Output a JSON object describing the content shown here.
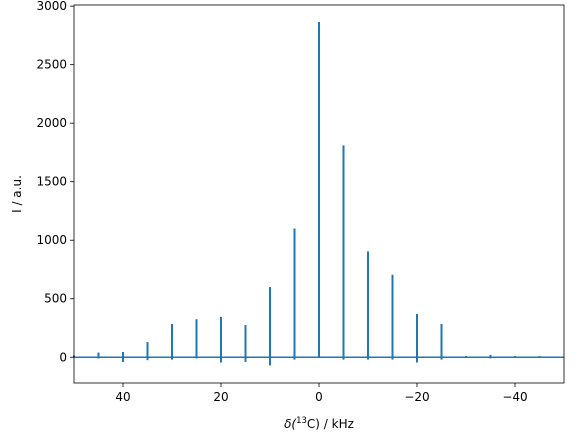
{
  "chart_data": {
    "type": "line",
    "title": "",
    "xlabel_parts": {
      "prefix": "δ(",
      "sup": "13",
      "suffix": "C) / kHz"
    },
    "ylabel": "I / a.u.",
    "xlim": [
      50,
      -50
    ],
    "ylim": [
      -220,
      3010
    ],
    "x_ticks": [
      40,
      20,
      0,
      -20,
      -40
    ],
    "x_tick_labels": [
      "40",
      "20",
      "0",
      "−20",
      "−40"
    ],
    "y_ticks": [
      0,
      500,
      1000,
      1500,
      2000,
      2500,
      3000
    ],
    "y_tick_labels": [
      "0",
      "500",
      "1000",
      "1500",
      "2000",
      "2500",
      "3000"
    ],
    "grid": false,
    "series": [
      {
        "color": "#1f77b4",
        "x_range": [
          50,
          -50
        ],
        "baseline": 0,
        "peaks": [
          {
            "x": 50,
            "y": 15,
            "neg": -5
          },
          {
            "x": 45,
            "y": 40,
            "neg": -10
          },
          {
            "x": 40,
            "y": 45,
            "neg": -40
          },
          {
            "x": 35,
            "y": 130,
            "neg": -25
          },
          {
            "x": 30,
            "y": 285,
            "neg": -20
          },
          {
            "x": 25,
            "y": 325,
            "neg": -10
          },
          {
            "x": 20,
            "y": 345,
            "neg": -45
          },
          {
            "x": 15,
            "y": 275,
            "neg": -40
          },
          {
            "x": 10,
            "y": 600,
            "neg": -70
          },
          {
            "x": 5,
            "y": 1100,
            "neg": -20
          },
          {
            "x": 0,
            "y": 2865,
            "neg": -5
          },
          {
            "x": -5,
            "y": 1810,
            "neg": -20
          },
          {
            "x": -10,
            "y": 905,
            "neg": -20
          },
          {
            "x": -15,
            "y": 705,
            "neg": -20
          },
          {
            "x": -20,
            "y": 370,
            "neg": -45
          },
          {
            "x": -25,
            "y": 285,
            "neg": -20
          },
          {
            "x": -30,
            "y": 10,
            "neg": -5
          },
          {
            "x": -35,
            "y": 20,
            "neg": -10
          },
          {
            "x": -40,
            "y": 10,
            "neg": -5
          },
          {
            "x": -45,
            "y": 10,
            "neg": -5
          }
        ]
      }
    ]
  }
}
